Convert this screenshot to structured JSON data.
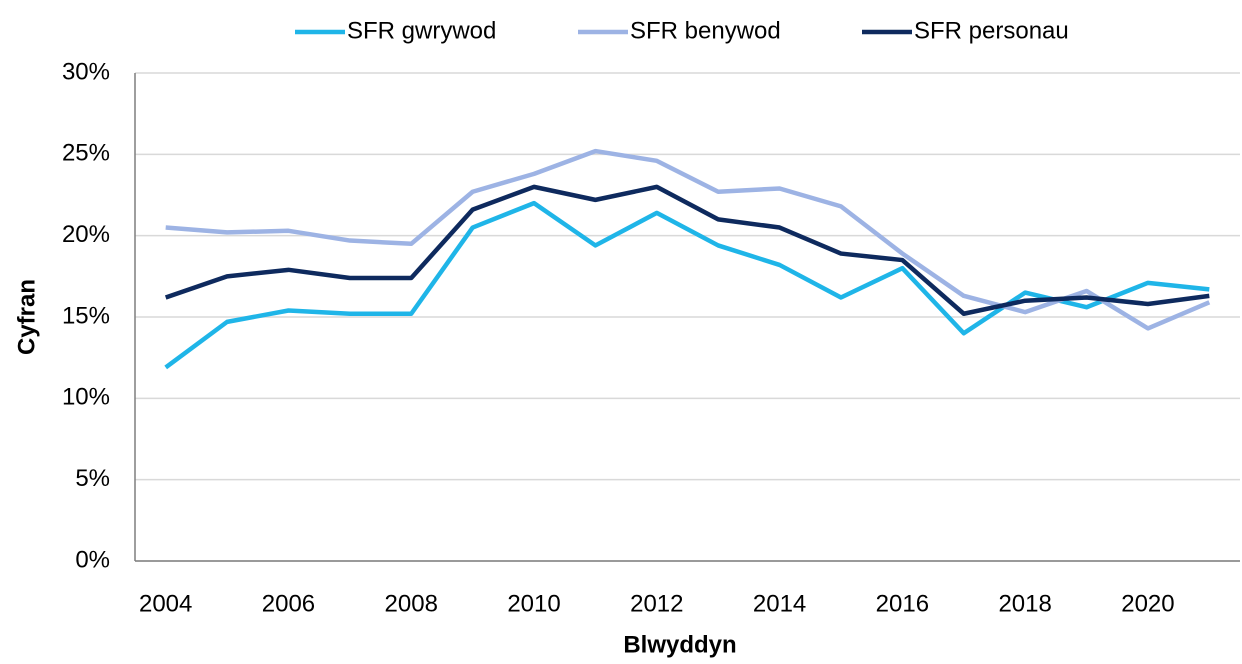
{
  "chart_data": {
    "type": "line",
    "x_label": "Blwyddyn",
    "y_label": "Cyfran",
    "categories": [
      2004,
      null,
      2006,
      null,
      2008,
      null,
      2010,
      null,
      2012,
      null,
      2014,
      null,
      2016,
      null,
      2018,
      null,
      2020,
      null
    ],
    "series": [
      {
        "name": "SFR gwrywod",
        "color": "#1fb5e8",
        "values": [
          11.9,
          14.7,
          15.4,
          15.2,
          15.2,
          20.5,
          22.0,
          19.4,
          21.4,
          19.4,
          18.2,
          16.2,
          18.0,
          14.0,
          16.5,
          15.6,
          17.1,
          16.7
        ]
      },
      {
        "name": "SFR benywod",
        "color": "#9db3e4",
        "values": [
          20.5,
          20.2,
          20.3,
          19.7,
          19.5,
          22.7,
          23.8,
          25.2,
          24.6,
          22.7,
          22.9,
          21.8,
          18.9,
          16.3,
          15.3,
          16.6,
          14.3,
          15.9
        ]
      },
      {
        "name": "SFR personau",
        "color": "#0e2a5e",
        "values": [
          16.2,
          17.5,
          17.9,
          17.4,
          17.4,
          21.6,
          23.0,
          22.2,
          23.0,
          21.0,
          20.5,
          18.9,
          18.5,
          15.2,
          16.0,
          16.2,
          15.8,
          16.3
        ]
      }
    ],
    "ylim": [
      0,
      30
    ],
    "yticks": [
      {
        "value": 0,
        "label": "0%"
      },
      {
        "value": 5,
        "label": "5%"
      },
      {
        "value": 10,
        "label": "10%"
      },
      {
        "value": 15,
        "label": "15%"
      },
      {
        "value": 20,
        "label": "20%"
      },
      {
        "value": 25,
        "label": "25%"
      },
      {
        "value": 30,
        "label": "30%"
      }
    ],
    "grid": true
  }
}
